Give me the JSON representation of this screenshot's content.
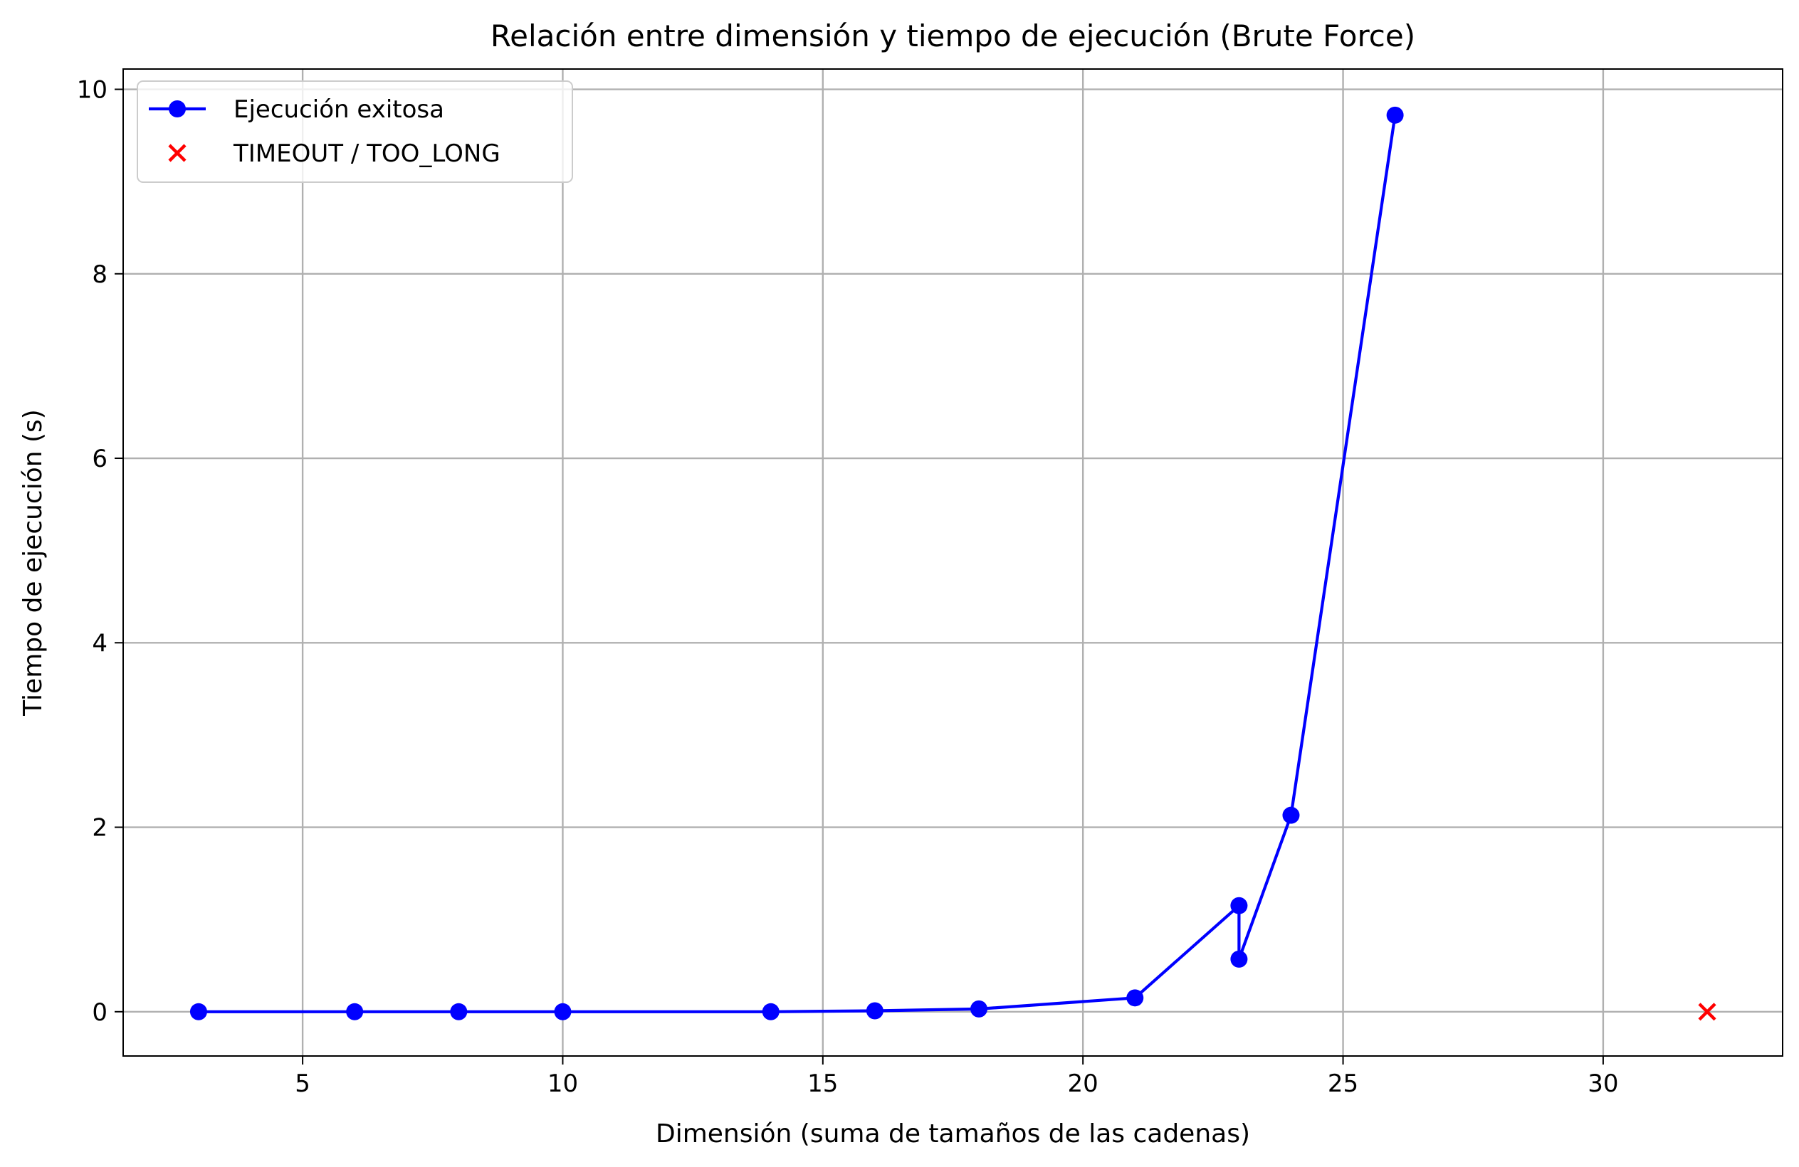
{
  "chart_data": {
    "type": "line",
    "title": "Relación entre dimensión y tiempo de ejecución (Brute Force)",
    "xlabel": "Dimensión (suma de tamaños de las cadenas)",
    "ylabel": "Tiempo de ejecución (s)",
    "xlim": [
      1.55,
      33.45
    ],
    "ylim": [
      -0.48,
      10.22
    ],
    "xticks": [
      5,
      10,
      15,
      20,
      25,
      30
    ],
    "xtick_labels": [
      "5",
      "10",
      "15",
      "20",
      "25",
      "30"
    ],
    "yticks": [
      0,
      2,
      4,
      6,
      8,
      10
    ],
    "ytick_labels": [
      "0",
      "2",
      "4",
      "6",
      "8",
      "10"
    ],
    "grid": true,
    "legend_position": "top-left",
    "series": [
      {
        "name": "Ejecución exitosa",
        "kind": "line-with-markers",
        "color": "#0000ff",
        "marker": "circle",
        "x": [
          3,
          6,
          8,
          10,
          14,
          16,
          18,
          21,
          23,
          23,
          24,
          26
        ],
        "y": [
          0.0,
          0.0,
          0.0,
          0.0,
          0.0,
          0.01,
          0.03,
          0.15,
          1.15,
          0.57,
          2.13,
          9.72
        ]
      },
      {
        "name": "TIMEOUT / TOO_LONG",
        "kind": "scatter",
        "color": "#ff0000",
        "marker": "x",
        "x": [
          32
        ],
        "y": [
          0.0
        ]
      }
    ]
  }
}
